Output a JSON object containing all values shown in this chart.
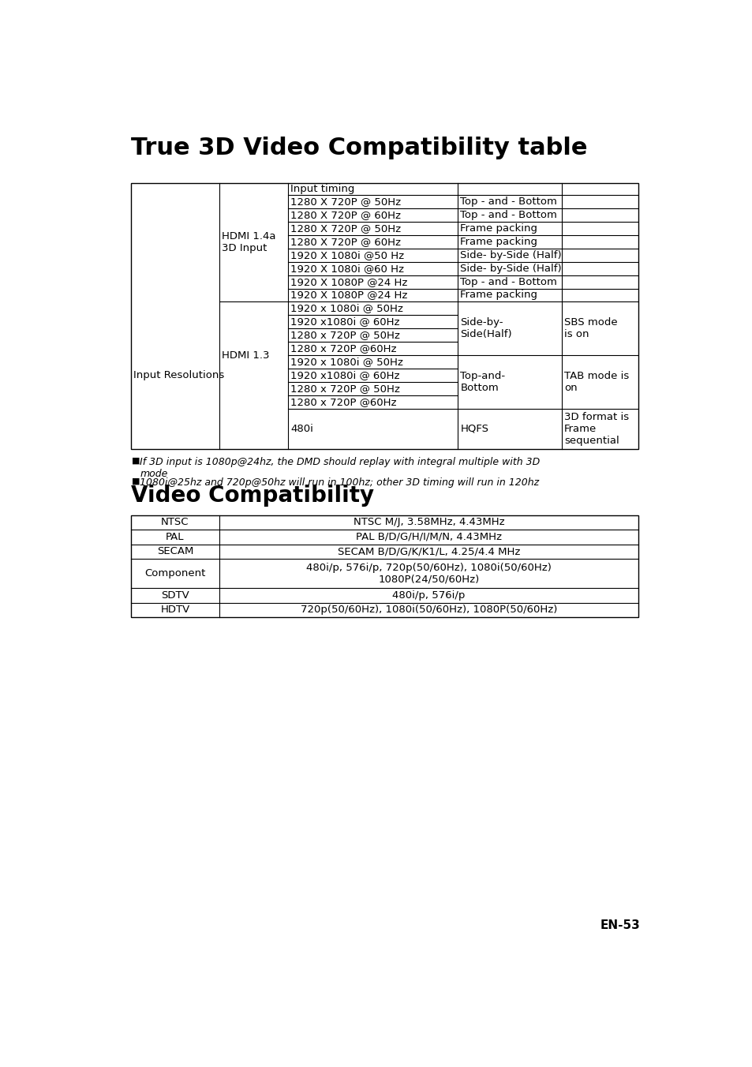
{
  "title1": "True 3D Video Compatibility table",
  "title2": "Video Compatibility",
  "bg_color": "#ffffff",
  "text_color": "#000000",
  "footer": "EN-53",
  "note1_line1": "If 3D input is 1080p@24hz, the DMD should replay with integral multiple with 3D",
  "note1_line2": "mode",
  "note2": "1080i@25hz and 720p@50hz will run in 100hz; other 3D timing will run in 120hz",
  "hdmi14_rows": [
    [
      "1280 X 720P @ 50Hz",
      "Top - and - Bottom"
    ],
    [
      "1280 X 720P @ 60Hz",
      "Top - and - Bottom"
    ],
    [
      "1280 X 720P @ 50Hz",
      "Frame packing"
    ],
    [
      "1280 X 720P @ 60Hz",
      "Frame packing"
    ],
    [
      "1920 X 1080i @50 Hz",
      "Side- by-Side (Half)"
    ],
    [
      "1920 X 1080i @60 Hz",
      "Side- by-Side (Half)"
    ],
    [
      "1920 X 1080P @24 Hz",
      "Top - and - Bottom"
    ],
    [
      "1920 X 1080P @24 Hz",
      "Frame packing"
    ]
  ],
  "sbs_timings": [
    "1920 x 1080i @ 50Hz",
    "1920 x1080i @ 60Hz",
    "1280 x 720P @ 50Hz",
    "1280 x 720P @60Hz"
  ],
  "tab_timings": [
    "1920 x 1080i @ 50Hz",
    "1920 x1080i @ 60Hz",
    "1280 x 720P @ 50Hz",
    "1280 x 720P @60Hz"
  ],
  "video_rows": [
    [
      "NTSC",
      "NTSC M/J, 3.58MHz, 4.43MHz"
    ],
    [
      "PAL",
      "PAL B/D/G/H/I/M/N, 4.43MHz"
    ],
    [
      "SECAM",
      "SECAM B/D/G/K/K1/L, 4.25/4.4 MHz"
    ],
    [
      "Component",
      "480i/p, 576i/p, 720p(50/60Hz), 1080i(50/60Hz)\n1080P(24/50/60Hz)"
    ],
    [
      "SDTV",
      "480i/p, 576i/p"
    ],
    [
      "HDTV",
      "720p(50/60Hz), 1080i(50/60Hz), 1080P(50/60Hz)"
    ]
  ]
}
